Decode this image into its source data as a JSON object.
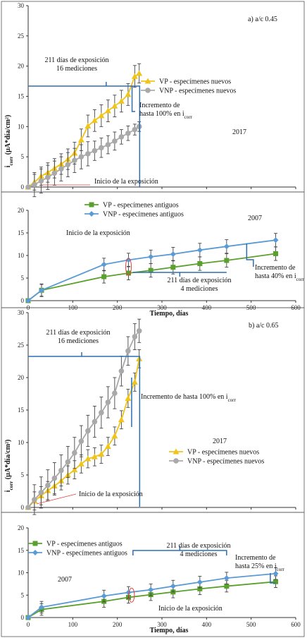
{
  "colors": {
    "vp": "#f0c419",
    "vnp_new": "#a9a9a9",
    "vp_old": "#5aa02c",
    "vnp_old": "#5b9bd5",
    "bracket": "#2e6db4",
    "err": "#444444",
    "pointer": "#e04040"
  },
  "charts": [
    {
      "type": "line",
      "panel_title": "a) a/c 0.45",
      "year": "2017",
      "ylabel": "i_corr (µA*día/cm²)",
      "xlabel": "",
      "xlim": [
        0,
        600
      ],
      "ylim": [
        0,
        30
      ],
      "xticks": [
        "0",
        "100",
        "200",
        "300",
        "400",
        "500",
        "600"
      ],
      "yticks": [
        "0",
        "5",
        "10",
        "15",
        "20",
        "25",
        "30"
      ],
      "show_xticks": false,
      "series": [
        {
          "name": "VP - especímenes nuevos",
          "marker": "triangle",
          "color": "#f0c419",
          "x": [
            0,
            14,
            29,
            44,
            59,
            74,
            89,
            104,
            119,
            134,
            149,
            164,
            179,
            194,
            209,
            224,
            239,
            249
          ],
          "y": [
            0,
            0.8,
            1.8,
            2.4,
            3.1,
            3.8,
            4.6,
            5.6,
            7.8,
            10.1,
            11.0,
            11.8,
            12.6,
            13.4,
            14.2,
            15.3,
            18.3,
            18.8
          ],
          "err": [
            0,
            1.3,
            1.5,
            1.6,
            1.6,
            1.7,
            1.7,
            1.8,
            1.8,
            1.8,
            1.8,
            1.8,
            1.8,
            1.8,
            1.8,
            1.8,
            1.8,
            1.6
          ]
        },
        {
          "name": "VNP - especímenes nuevos",
          "marker": "circle",
          "color": "#a9a9a9",
          "x": [
            0,
            14,
            29,
            44,
            59,
            74,
            89,
            104,
            119,
            134,
            149,
            164,
            179,
            194,
            209,
            224,
            239,
            249
          ],
          "y": [
            0,
            0.4,
            1.0,
            1.6,
            2.3,
            3.0,
            3.7,
            4.4,
            5.0,
            5.5,
            6.0,
            6.5,
            7.0,
            7.6,
            8.3,
            8.9,
            9.5,
            10.0
          ],
          "err": [
            0,
            2.0,
            2.0,
            2.0,
            2.0,
            2.0,
            2.0,
            2.0,
            2.0,
            2.0,
            1.6,
            1.6,
            1.5,
            1.5,
            1.2,
            1.2,
            0.9,
            0.8
          ]
        }
      ],
      "annotations": {
        "bracket": "211 días de exposición\n16 mediciones",
        "increment": "Incremento de\nhasta 100% en i_corr",
        "start": "Inicio de la exposición"
      }
    },
    {
      "type": "line",
      "panel_title": "",
      "year": "2007",
      "ylabel": "",
      "xlabel": "Tiempo, días",
      "xlim": [
        0,
        600
      ],
      "ylim": [
        0,
        20
      ],
      "xticks": [
        "0",
        "100",
        "200",
        "300",
        "400",
        "500",
        "600"
      ],
      "yticks": [
        "0",
        "5",
        "10",
        "15",
        "20"
      ],
      "show_xticks": true,
      "series": [
        {
          "name": "VP - especímenes antiguos",
          "marker": "square",
          "color": "#5aa02c",
          "x": [
            0,
            30,
            170,
            225,
            275,
            325,
            385,
            445,
            555
          ],
          "y": [
            0,
            2.3,
            5.3,
            6.1,
            6.7,
            7.4,
            8.2,
            8.9,
            10.4
          ],
          "err": [
            0,
            1.3,
            1.4,
            1.5,
            1.5,
            1.5,
            1.5,
            1.5,
            1.5
          ]
        },
        {
          "name": "VNP - especímenes antiguos",
          "marker": "diamond",
          "color": "#5b9bd5",
          "x": [
            0,
            30,
            170,
            225,
            275,
            325,
            385,
            445,
            555
          ],
          "y": [
            0,
            2.3,
            8.0,
            9.0,
            9.7,
            10.3,
            11.2,
            12.0,
            13.4
          ],
          "err": [
            0,
            1.4,
            1.4,
            1.5,
            1.5,
            1.5,
            1.5,
            1.5,
            1.5
          ]
        }
      ],
      "annotations": {
        "bracket": "211 días de exposición\n4 mediciones",
        "increment": "Incremento de\nhasta 40% en i_corr",
        "start": "Inicio de la exposición"
      }
    },
    {
      "type": "line",
      "panel_title": "b)  a/c 0.65",
      "year": "2017",
      "ylabel": "i_corr (µA*día/cm²)",
      "xlabel": "",
      "xlim": [
        0,
        600
      ],
      "ylim": [
        0,
        30
      ],
      "xticks": [
        "0",
        "100",
        "200",
        "300",
        "400",
        "500",
        "600"
      ],
      "yticks": [
        "0",
        "5",
        "10",
        "15",
        "20",
        "25",
        "30"
      ],
      "show_xticks": false,
      "series": [
        {
          "name": "VP - especímenes nuevos",
          "marker": "triangle",
          "color": "#f0c419",
          "x": [
            0,
            14,
            29,
            44,
            59,
            74,
            89,
            104,
            119,
            134,
            149,
            164,
            179,
            194,
            209,
            224,
            239,
            249
          ],
          "y": [
            0,
            1.0,
            1.8,
            2.6,
            3.3,
            4.1,
            5.0,
            5.8,
            6.7,
            7.5,
            7.8,
            8.2,
            9.4,
            11.0,
            13.5,
            16.8,
            19.3,
            22.9
          ],
          "err": [
            0,
            1.4,
            1.4,
            1.4,
            1.4,
            1.4,
            1.4,
            1.4,
            1.4,
            1.4,
            1.4,
            1.4,
            1.4,
            1.4,
            1.4,
            1.4,
            1.4,
            1.4
          ]
        },
        {
          "name": "VNP - especímenes nuevos",
          "marker": "circle",
          "color": "#a9a9a9",
          "x": [
            0,
            14,
            29,
            44,
            59,
            74,
            89,
            104,
            119,
            134,
            149,
            164,
            179,
            194,
            209,
            224,
            239,
            249
          ],
          "y": [
            0,
            1.2,
            2.3,
            3.4,
            4.5,
            5.7,
            7.0,
            8.4,
            10.2,
            11.8,
            13.2,
            14.6,
            16.2,
            17.6,
            21.0,
            24.1,
            26.3,
            27.2
          ],
          "err": [
            0,
            2.3,
            2.4,
            2.4,
            2.4,
            2.4,
            2.4,
            2.4,
            2.4,
            2.4,
            2.4,
            2.4,
            2.4,
            2.4,
            2.3,
            2.2,
            2.0,
            1.8
          ]
        }
      ],
      "annotations": {
        "bracket": "211 días de exposición\n16 mediciones",
        "increment": "Incremento de hasta 100% en i_corr",
        "start": "Inicio de la exposición"
      }
    },
    {
      "type": "line",
      "panel_title": "",
      "year": "2007",
      "ylabel": "",
      "xlabel": "Tiempo, días",
      "xlim": [
        0,
        600
      ],
      "ylim": [
        0,
        20
      ],
      "xticks": [
        "0",
        "100",
        "200",
        "300",
        "400",
        "500",
        "600"
      ],
      "yticks": [
        "0",
        "5",
        "10",
        "15",
        "20"
      ],
      "show_xticks": true,
      "series": [
        {
          "name": "VP - especímenes antiguos",
          "marker": "square",
          "color": "#5aa02c",
          "x": [
            0,
            30,
            170,
            225,
            275,
            325,
            385,
            445,
            555
          ],
          "y": [
            0,
            1.8,
            3.6,
            4.5,
            5.1,
            5.7,
            6.4,
            7.0,
            8.0
          ],
          "err": [
            0,
            1.3,
            1.3,
            1.3,
            1.3,
            1.3,
            1.3,
            1.3,
            1.3
          ]
        },
        {
          "name": "VNP - especímenes antiguos",
          "marker": "diamond",
          "color": "#5b9bd5",
          "x": [
            0,
            30,
            170,
            225,
            275,
            325,
            385,
            445,
            555
          ],
          "y": [
            0,
            2.3,
            4.8,
            5.6,
            6.2,
            7.0,
            7.9,
            8.8,
            9.8
          ],
          "err": [
            0,
            1.3,
            1.3,
            1.3,
            1.3,
            1.3,
            1.3,
            1.3,
            1.3
          ]
        }
      ],
      "annotations": {
        "bracket": "211 días de exposición\n4 mediciones",
        "increment": "Incremento de\nhasta 25% en i_corr",
        "start": "Inicio de la exposición"
      }
    }
  ]
}
